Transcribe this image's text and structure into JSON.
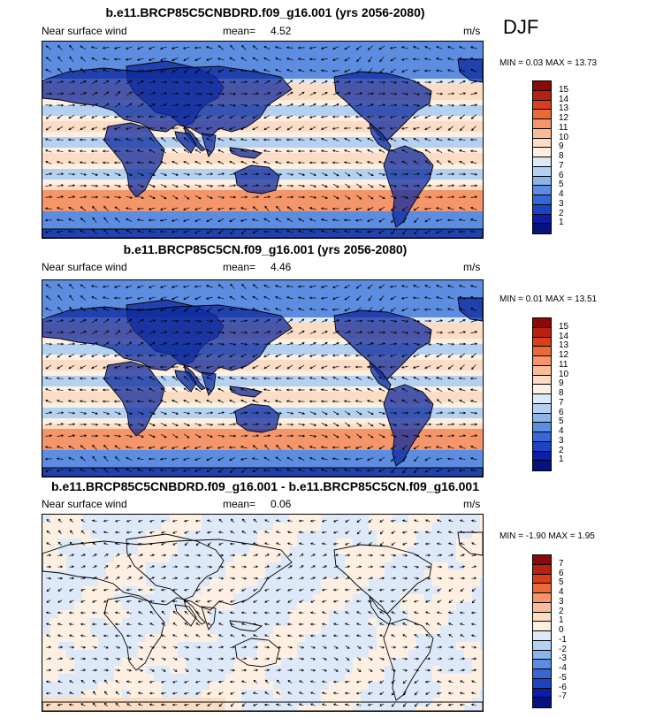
{
  "season": "DJF",
  "panels": [
    {
      "title": "b.e11.BRCP85C5CNBDRD.f09_g16.001 (yrs 2056-2080)",
      "left": "Near surface wind",
      "mean_label": "mean=",
      "mean_value": "4.52",
      "units": "m/s",
      "min_label": "MIN =",
      "min_value": "0.03",
      "max_label": "MAX =",
      "max_value": "13.73",
      "colorbar_labels": [
        "15",
        "14",
        "13",
        "12",
        "11",
        "10",
        "9",
        "8",
        "7",
        "6",
        "5",
        "4",
        "3",
        "2",
        "1"
      ],
      "colorbar_colors": [
        "#8b0a08",
        "#b8200f",
        "#d6401c",
        "#ea6a3a",
        "#f4956a",
        "#f8bc98",
        "#fbdcc4",
        "#fdf0e2",
        "#dde9f8",
        "#b5d1f2",
        "#8ab4ea",
        "#5d8de0",
        "#3766d6",
        "#1c43c2",
        "#0a1ea8",
        "#06127e"
      ]
    },
    {
      "title": "b.e11.BRCP85C5CN.f09_g16.001 (yrs 2056-2080)",
      "left": "Near surface wind",
      "mean_label": "mean=",
      "mean_value": "4.46",
      "units": "m/s",
      "min_label": "MIN =",
      "min_value": "0.01",
      "max_label": "MAX =",
      "max_value": "13.51",
      "colorbar_labels": [
        "15",
        "14",
        "13",
        "12",
        "11",
        "10",
        "9",
        "8",
        "7",
        "6",
        "5",
        "4",
        "3",
        "2",
        "1"
      ],
      "colorbar_colors": [
        "#8b0a08",
        "#b8200f",
        "#d6401c",
        "#ea6a3a",
        "#f4956a",
        "#f8bc98",
        "#fbdcc4",
        "#fdf0e2",
        "#dde9f8",
        "#b5d1f2",
        "#8ab4ea",
        "#5d8de0",
        "#3766d6",
        "#1c43c2",
        "#0a1ea8",
        "#06127e"
      ]
    },
    {
      "title": "b.e11.BRCP85C5CNBDRD.f09_g16.001 - b.e11.BRCP85C5CN.f09_g16.001",
      "left": "Near surface wind",
      "mean_label": "mean=",
      "mean_value": "0.06",
      "units": "m/s",
      "min_label": "MIN =",
      "min_value": "-1.90",
      "max_label": "MAX =",
      "max_value": "1.95",
      "colorbar_labels": [
        "7",
        "6",
        "5",
        "4",
        "3",
        "2",
        "1",
        "0",
        "-1",
        "-2",
        "-3",
        "-4",
        "-5",
        "-6",
        "-7"
      ],
      "colorbar_colors": [
        "#8b0a08",
        "#b8200f",
        "#d6401c",
        "#ea6a3a",
        "#f4956a",
        "#f8bc98",
        "#fbdcc4",
        "#fdf0e2",
        "#dde9f8",
        "#b5d1f2",
        "#8ab4ea",
        "#5d8de0",
        "#3766d6",
        "#1c43c2",
        "#0a1ea8",
        "#06127e"
      ]
    }
  ]
}
